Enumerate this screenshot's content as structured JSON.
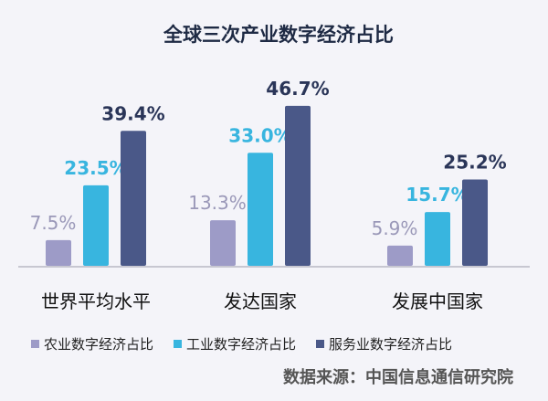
{
  "chart_data": {
    "type": "bar",
    "title": "全球三次产业数字经济占比",
    "categories": [
      "世界平均水平",
      "发达国家",
      "发展中国家"
    ],
    "series": [
      {
        "name": "农业数字经济占比",
        "values": [
          7.5,
          13.3,
          5.9
        ],
        "labels": [
          "7.5%",
          "13.3%",
          "5.9%"
        ],
        "color": "#9d9bc7"
      },
      {
        "name": "工业数字经济占比",
        "values": [
          23.5,
          33.0,
          15.7
        ],
        "labels": [
          "23.5%",
          "33.0%",
          "15.7%"
        ],
        "color": "#38b5df"
      },
      {
        "name": "服务业数字经济占比",
        "values": [
          39.4,
          46.7,
          25.2
        ],
        "labels": [
          "39.4%",
          "46.7%",
          "25.2%"
        ],
        "color": "#4a5888"
      }
    ],
    "label_colors": [
      "#9a98b8",
      "#38b5df",
      "#2a3558"
    ],
    "ylim": [
      0,
      50
    ],
    "grid": false,
    "legend": "bottom",
    "source": "数据来源：中国信息通信研究院"
  }
}
